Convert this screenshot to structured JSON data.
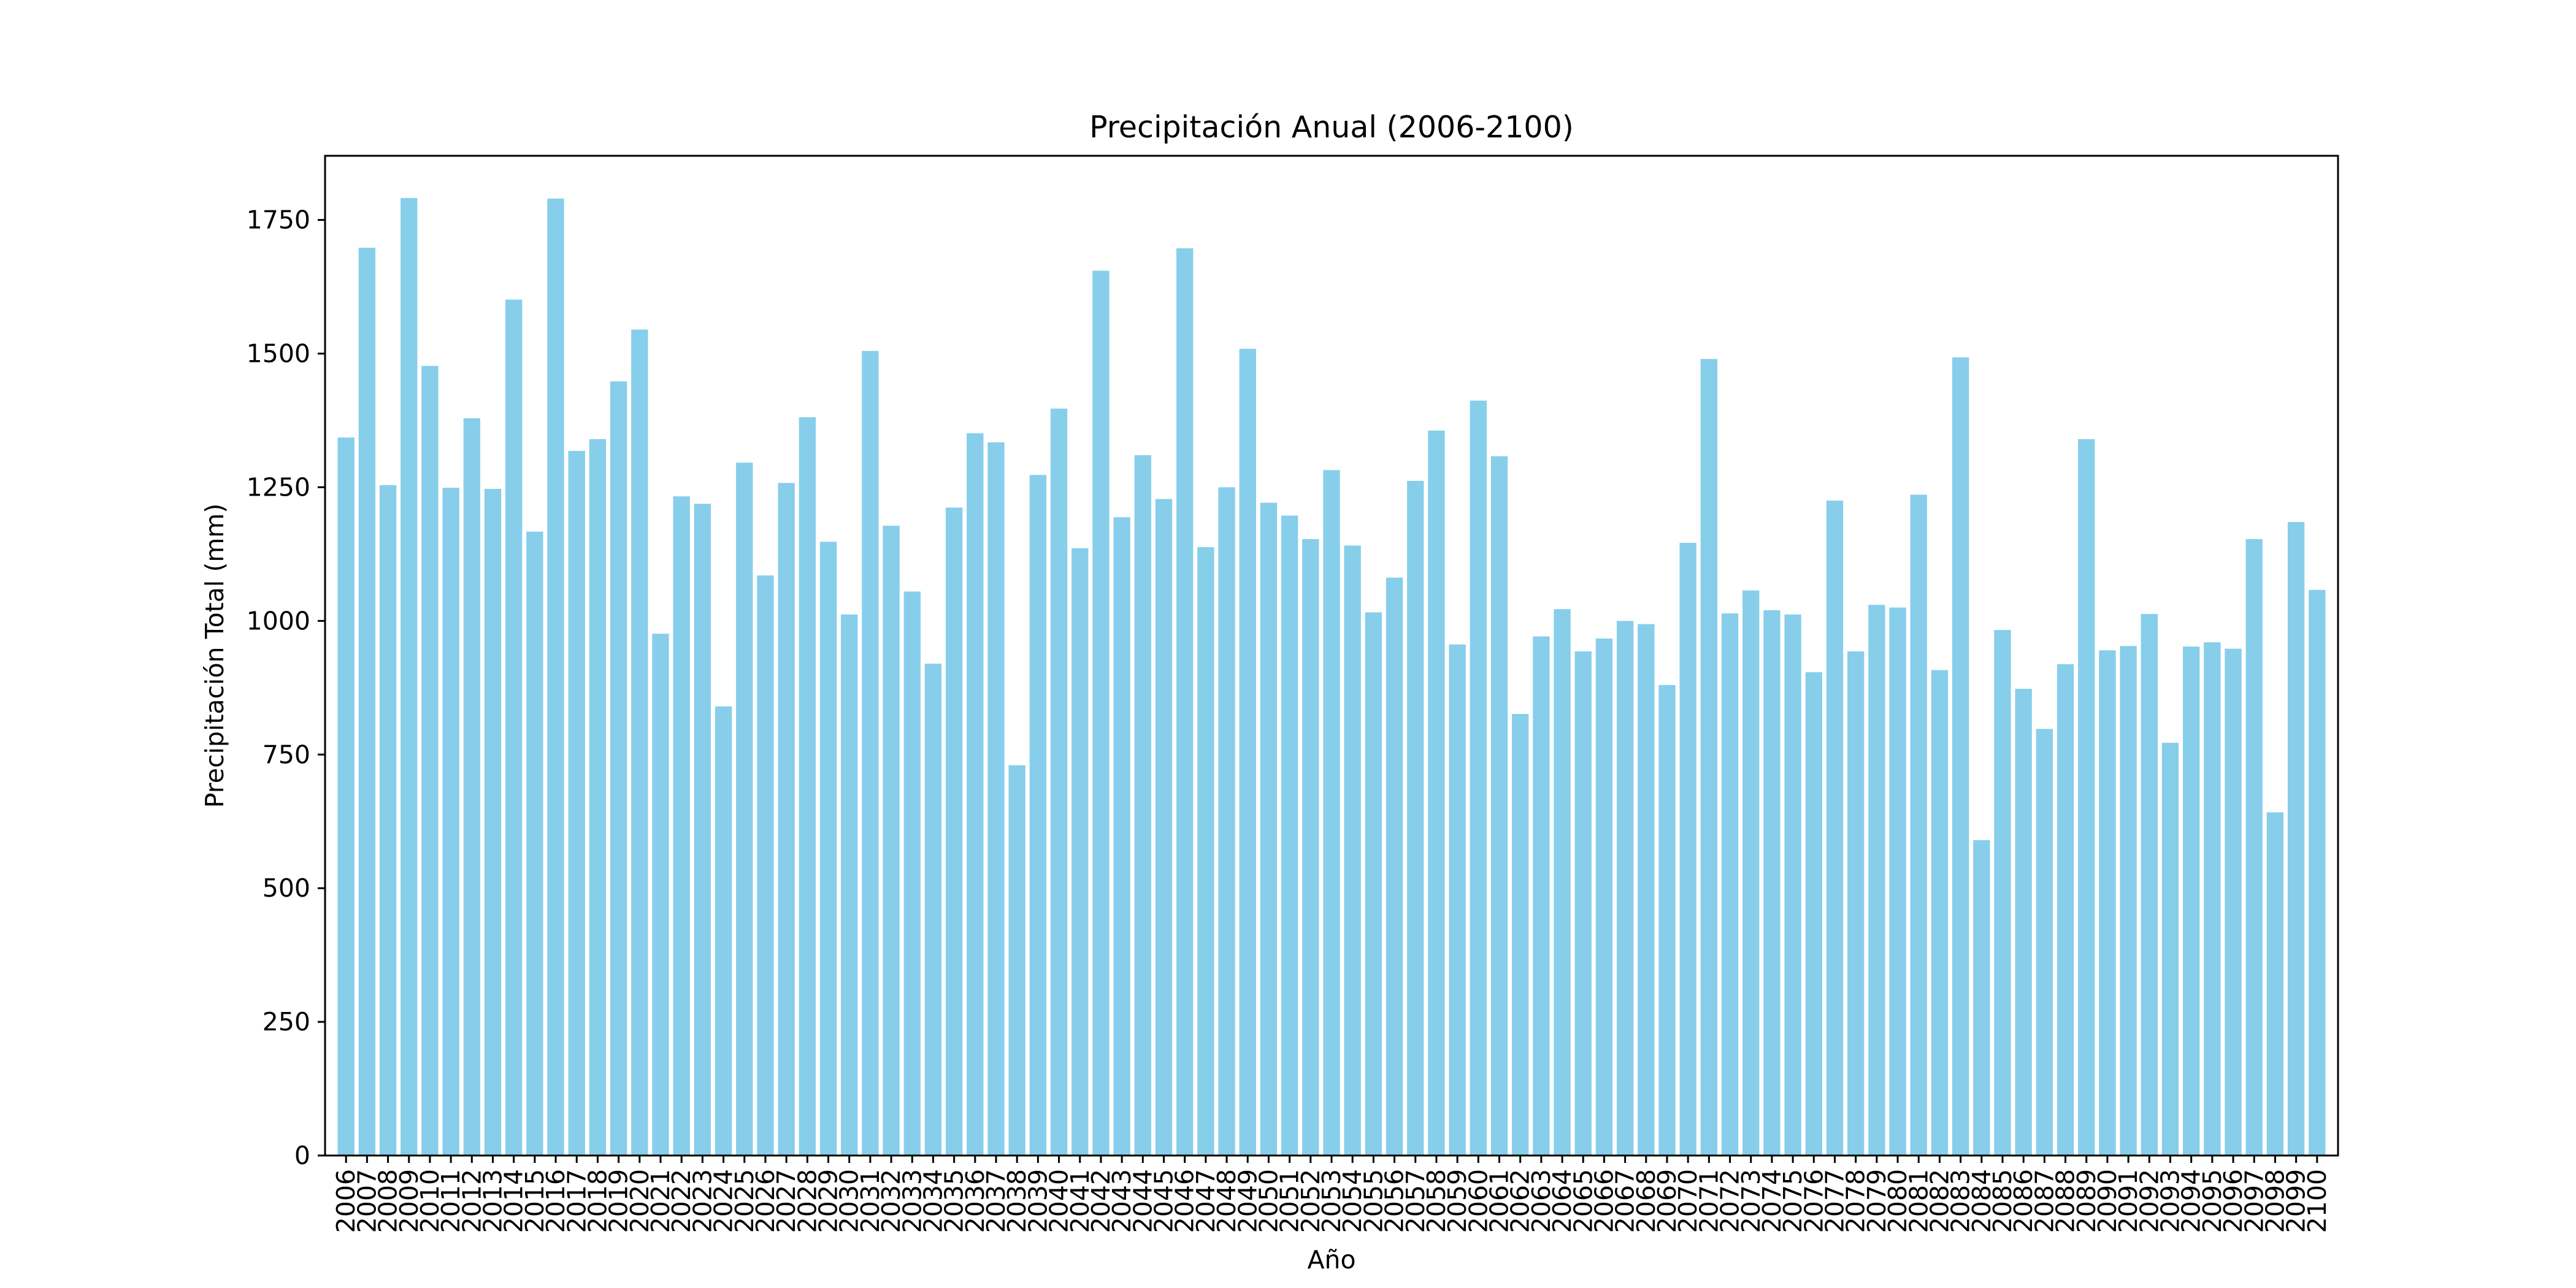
{
  "chart_data": {
    "type": "bar",
    "title": "Precipitación Anual (2006-2100)",
    "xlabel": "Año",
    "ylabel": "Precipitación Total (mm)",
    "ylim": [
      0,
      1870
    ],
    "yticks": [
      0,
      250,
      500,
      750,
      1000,
      1250,
      1500,
      1750
    ],
    "grid": false,
    "legend": "none",
    "bar_color": "#87CEEB",
    "categories": [
      "2006",
      "2007",
      "2008",
      "2009",
      "2010",
      "2011",
      "2012",
      "2013",
      "2014",
      "2015",
      "2016",
      "2017",
      "2018",
      "2019",
      "2020",
      "2021",
      "2022",
      "2023",
      "2024",
      "2025",
      "2026",
      "2027",
      "2028",
      "2029",
      "2030",
      "2031",
      "2032",
      "2033",
      "2034",
      "2035",
      "2036",
      "2037",
      "2038",
      "2039",
      "2040",
      "2041",
      "2042",
      "2043",
      "2044",
      "2045",
      "2046",
      "2047",
      "2048",
      "2049",
      "2050",
      "2051",
      "2052",
      "2053",
      "2054",
      "2055",
      "2056",
      "2057",
      "2058",
      "2059",
      "2060",
      "2061",
      "2062",
      "2063",
      "2064",
      "2065",
      "2066",
      "2067",
      "2068",
      "2069",
      "2070",
      "2071",
      "2072",
      "2073",
      "2074",
      "2075",
      "2076",
      "2077",
      "2078",
      "2079",
      "2080",
      "2081",
      "2082",
      "2083",
      "2084",
      "2085",
      "2086",
      "2087",
      "2088",
      "2089",
      "2090",
      "2091",
      "2092",
      "2093",
      "2094",
      "2095",
      "2096",
      "2097",
      "2098",
      "2099",
      "2100"
    ],
    "values": [
      1343,
      1698,
      1254,
      1791,
      1477,
      1249,
      1379,
      1247,
      1601,
      1167,
      1790,
      1318,
      1340,
      1448,
      1545,
      976,
      1233,
      1219,
      840,
      1296,
      1085,
      1258,
      1381,
      1148,
      1012,
      1505,
      1178,
      1055,
      920,
      1212,
      1351,
      1334,
      730,
      1273,
      1397,
      1136,
      1655,
      1194,
      1310,
      1228,
      1697,
      1138,
      1250,
      1509,
      1221,
      1197,
      1153,
      1282,
      1141,
      1016,
      1081,
      1262,
      1356,
      956,
      1412,
      1308,
      826,
      971,
      1022,
      943,
      967,
      1000,
      994,
      880,
      1146,
      1490,
      1014,
      1057,
      1020,
      1012,
      904,
      1225,
      943,
      1030,
      1025,
      1236,
      908,
      1493,
      590,
      983,
      873,
      798,
      919,
      1340,
      945,
      953,
      1013,
      772,
      952,
      960,
      948,
      1153,
      642,
      1185,
      1058
    ]
  }
}
